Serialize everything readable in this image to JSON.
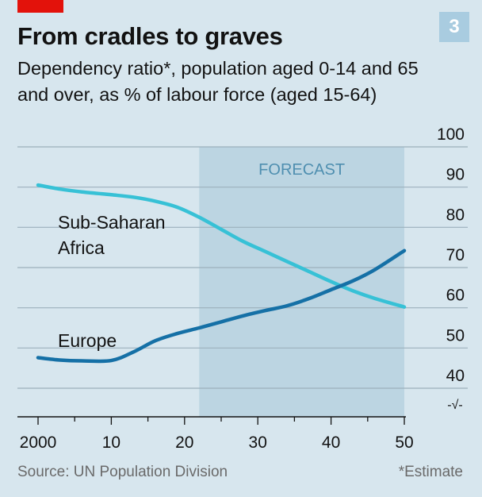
{
  "header": {
    "chart_number": "3",
    "title": "From cradles to graves",
    "subtitle": "Dependency ratio*, population aged 0-14 and 65 and over, as % of labour force (aged 15-64)"
  },
  "footer": {
    "source": "Source: UN Population Division",
    "note": "*Estimate"
  },
  "colors": {
    "background": "#d7e6ee",
    "forecast_band": "#bcd5e2",
    "africa_line": "#37c1d6",
    "europe_line": "#1570a6",
    "brand_red": "#e3120b"
  },
  "chart_data": {
    "type": "line",
    "title": "From cradles to graves",
    "subtitle": "Dependency ratio*, population aged 0-14 and 65 and over, as % of labour force (aged 15-64)",
    "x": [
      2000,
      2003,
      2006,
      2010,
      2013,
      2016,
      2019,
      2022,
      2025,
      2028,
      2031,
      2034,
      2037,
      2040,
      2043,
      2046,
      2050
    ],
    "x_tick_values": [
      2000,
      2010,
      2020,
      2030,
      2040,
      2050
    ],
    "x_tick_labels": [
      "2000",
      "10",
      "20",
      "30",
      "40",
      "50"
    ],
    "y_tick_values": [
      40,
      50,
      60,
      70,
      80,
      90,
      100
    ],
    "y_tick_labels": [
      "40",
      "50",
      "60",
      "70",
      "80",
      "90",
      "100"
    ],
    "ylim": [
      40,
      100
    ],
    "axis_break_symbol": "-√-",
    "forecast_region": {
      "label": "FORECAST",
      "from": 2022,
      "to": 2050
    },
    "series": [
      {
        "name": "Sub-Saharan Africa",
        "label_lines": [
          "Sub-Saharan",
          "Africa"
        ],
        "color": "#37c1d6",
        "values": [
          90.5,
          89.5,
          88.8,
          88.1,
          87.5,
          86.5,
          85.0,
          82.5,
          79.5,
          76.5,
          74.0,
          71.5,
          69.0,
          66.5,
          64.2,
          62.3,
          60.2
        ]
      },
      {
        "name": "Europe",
        "label_lines": [
          "Europe"
        ],
        "color": "#1570a6",
        "values": [
          47.6,
          47.0,
          46.8,
          46.9,
          49.0,
          51.8,
          53.6,
          55.0,
          56.5,
          58.0,
          59.3,
          60.5,
          62.3,
          64.5,
          66.7,
          69.5,
          74.2
        ]
      }
    ],
    "grid": true,
    "legend": "direct labels on lines"
  }
}
